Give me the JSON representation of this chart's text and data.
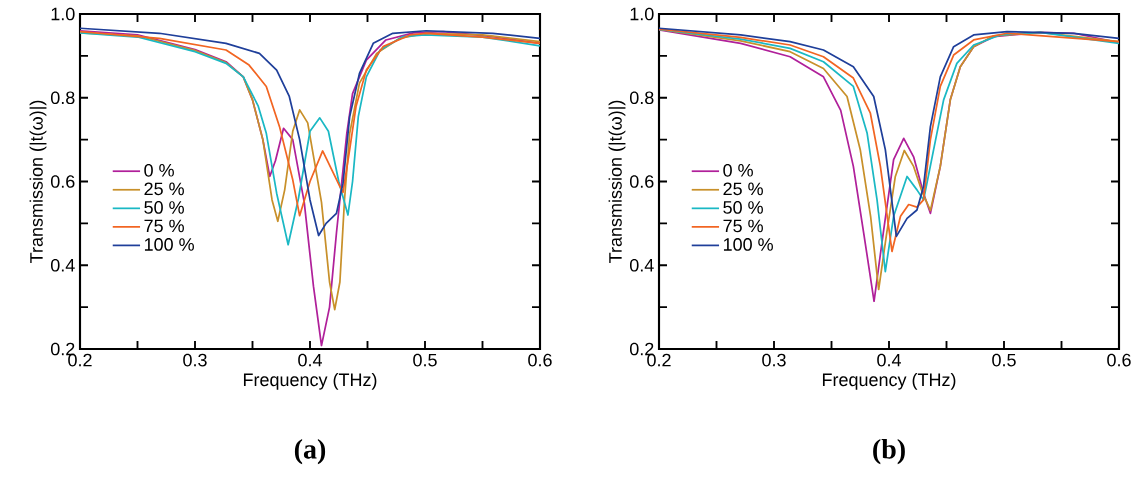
{
  "chart_data": [
    {
      "type": "line",
      "title": "(a)",
      "xlabel": "Frequency (THz)",
      "ylabel": "Transmission (|t(ω)|)",
      "xlim": [
        0.2,
        0.6
      ],
      "ylim": [
        0.2,
        1.0
      ],
      "xticks": [
        0.2,
        {
          "value": 0.25,
          "label": null
        },
        0.3,
        {
          "value": 0.35,
          "label": null
        },
        0.4,
        {
          "value": 0.45,
          "label": null
        },
        0.5,
        {
          "value": 0.55,
          "label": null
        },
        0.6
      ],
      "yticks": [
        0.2,
        {
          "value": 0.3,
          "label": null
        },
        0.4,
        {
          "value": 0.5,
          "label": null
        },
        0.6,
        {
          "value": 0.7,
          "label": null
        },
        0.8,
        {
          "value": 0.9,
          "label": null
        },
        {
          "value": 1.0,
          "label": "1.0"
        }
      ],
      "legend": "left",
      "grid": false,
      "marker": "none",
      "line_style": "solid",
      "series": [
        {
          "name": "0 %",
          "color": "#b0209a",
          "x": [
            0.2,
            0.25,
            0.3,
            0.327,
            0.342,
            0.35,
            0.359,
            0.365,
            0.37,
            0.377,
            0.385,
            0.395,
            0.403,
            0.41,
            0.417,
            0.423,
            0.432,
            0.437,
            0.449,
            0.466,
            0.49,
            0.516,
            0.559,
            0.6
          ],
          "values": [
            0.96,
            0.95,
            0.915,
            0.886,
            0.85,
            0.795,
            0.7,
            0.612,
            0.65,
            0.727,
            0.7,
            0.55,
            0.35,
            0.208,
            0.3,
            0.477,
            0.715,
            0.81,
            0.89,
            0.938,
            0.955,
            0.958,
            0.946,
            0.93
          ]
        },
        {
          "name": "25 %",
          "color": "#c8902a",
          "x": [
            0.2,
            0.25,
            0.3,
            0.327,
            0.342,
            0.35,
            0.359,
            0.367,
            0.372,
            0.378,
            0.385,
            0.391,
            0.398,
            0.41,
            0.417,
            0.4215,
            0.426,
            0.43,
            0.4345,
            0.443,
            0.458,
            0.478,
            0.501,
            0.55,
            0.6
          ],
          "values": [
            0.955,
            0.948,
            0.913,
            0.884,
            0.85,
            0.795,
            0.7,
            0.556,
            0.505,
            0.58,
            0.72,
            0.771,
            0.74,
            0.55,
            0.36,
            0.294,
            0.36,
            0.556,
            0.715,
            0.835,
            0.906,
            0.942,
            0.954,
            0.95,
            0.934
          ]
        },
        {
          "name": "50 %",
          "color": "#1ab8c4",
          "x": [
            0.2,
            0.25,
            0.3,
            0.327,
            0.342,
            0.355,
            0.362,
            0.371,
            0.381,
            0.39,
            0.4,
            0.4085,
            0.416,
            0.425,
            0.433,
            0.437,
            0.442,
            0.449,
            0.461,
            0.481,
            0.5,
            0.55,
            0.6
          ],
          "values": [
            0.955,
            0.945,
            0.91,
            0.882,
            0.85,
            0.78,
            0.715,
            0.572,
            0.449,
            0.56,
            0.72,
            0.752,
            0.72,
            0.6,
            0.52,
            0.6,
            0.755,
            0.85,
            0.914,
            0.946,
            0.95,
            0.945,
            0.924
          ]
        },
        {
          "name": "75 %",
          "color": "#f26522",
          "x": [
            0.2,
            0.269,
            0.327,
            0.347,
            0.362,
            0.3735,
            0.385,
            0.391,
            0.4,
            0.411,
            0.426,
            0.4287,
            0.4345,
            0.44,
            0.449,
            0.4635,
            0.487,
            0.501,
            0.55,
            0.6
          ],
          "values": [
            0.958,
            0.942,
            0.914,
            0.878,
            0.827,
            0.731,
            0.604,
            0.518,
            0.6,
            0.673,
            0.588,
            0.574,
            0.676,
            0.779,
            0.866,
            0.922,
            0.95,
            0.954,
            0.945,
            0.93
          ]
        },
        {
          "name": "100 %",
          "color": "#1f3f9a",
          "x": [
            0.2,
            0.269,
            0.327,
            0.356,
            0.371,
            0.382,
            0.391,
            0.4,
            0.4075,
            0.414,
            0.423,
            0.4287,
            0.4345,
            0.443,
            0.455,
            0.472,
            0.501,
            0.559,
            0.6
          ],
          "values": [
            0.966,
            0.954,
            0.93,
            0.906,
            0.866,
            0.803,
            0.7,
            0.556,
            0.471,
            0.5,
            0.524,
            0.596,
            0.755,
            0.858,
            0.93,
            0.954,
            0.96,
            0.954,
            0.942
          ]
        }
      ]
    },
    {
      "type": "line",
      "title": "(b)",
      "xlabel": "Frequency (THz)",
      "ylabel": "Transmission (|t(ω)|)",
      "xlim": [
        0.2,
        0.6
      ],
      "ylim": [
        0.2,
        1.0
      ],
      "xticks": [
        0.2,
        {
          "value": 0.25,
          "label": null
        },
        0.3,
        {
          "value": 0.35,
          "label": null
        },
        0.4,
        {
          "value": 0.45,
          "label": null
        },
        0.5,
        {
          "value": 0.55,
          "label": null
        },
        0.6
      ],
      "yticks": [
        0.2,
        {
          "value": 0.3,
          "label": null
        },
        0.4,
        {
          "value": 0.5,
          "label": null
        },
        0.6,
        {
          "value": 0.7,
          "label": null
        },
        0.8,
        {
          "value": 0.9,
          "label": null
        },
        {
          "value": 1.0,
          "label": "1.0"
        }
      ],
      "legend": "left",
      "grid": false,
      "marker": "none",
      "line_style": "solid",
      "series": [
        {
          "name": "0 %",
          "color": "#b0209a",
          "x": [
            0.2,
            0.271,
            0.314,
            0.343,
            0.358,
            0.369,
            0.378,
            0.387,
            0.395,
            0.404,
            0.4128,
            0.4214,
            0.43,
            0.436,
            0.4446,
            0.4533,
            0.462,
            0.4736,
            0.491,
            0.5316,
            0.5606,
            0.6
          ],
          "values": [
            0.962,
            0.93,
            0.898,
            0.85,
            0.77,
            0.636,
            0.477,
            0.314,
            0.477,
            0.652,
            0.703,
            0.659,
            0.572,
            0.524,
            0.636,
            0.795,
            0.874,
            0.922,
            0.946,
            0.956,
            0.954,
            0.932
          ]
        },
        {
          "name": "25 %",
          "color": "#c8902a",
          "x": [
            0.2,
            0.271,
            0.314,
            0.343,
            0.3635,
            0.375,
            0.384,
            0.391,
            0.398,
            0.4055,
            0.4133,
            0.4214,
            0.4287,
            0.436,
            0.4446,
            0.4533,
            0.462,
            0.4736,
            0.491,
            0.5316,
            0.6
          ],
          "values": [
            0.963,
            0.936,
            0.91,
            0.87,
            0.803,
            0.676,
            0.517,
            0.342,
            0.477,
            0.612,
            0.674,
            0.636,
            0.576,
            0.531,
            0.636,
            0.795,
            0.874,
            0.922,
            0.948,
            0.956,
            0.934
          ]
        },
        {
          "name": "50 %",
          "color": "#1ab8c4",
          "x": [
            0.2,
            0.271,
            0.314,
            0.343,
            0.369,
            0.381,
            0.3896,
            0.3968,
            0.404,
            0.4157,
            0.4243,
            0.4301,
            0.4388,
            0.4475,
            0.459,
            0.4736,
            0.4968,
            0.5316,
            0.6
          ],
          "values": [
            0.963,
            0.94,
            0.918,
            0.886,
            0.827,
            0.715,
            0.556,
            0.385,
            0.517,
            0.612,
            0.58,
            0.556,
            0.676,
            0.795,
            0.882,
            0.926,
            0.95,
            0.956,
            0.93
          ]
        },
        {
          "name": "75 %",
          "color": "#f26522",
          "x": [
            0.2,
            0.271,
            0.314,
            0.343,
            0.369,
            0.3838,
            0.3925,
            0.4026,
            0.41,
            0.4171,
            0.4243,
            0.43,
            0.436,
            0.4446,
            0.4562,
            0.4736,
            0.5026,
            0.6
          ],
          "values": [
            0.964,
            0.944,
            0.926,
            0.898,
            0.847,
            0.763,
            0.636,
            0.433,
            0.517,
            0.545,
            0.539,
            0.556,
            0.7,
            0.827,
            0.902,
            0.938,
            0.954,
            0.934
          ]
        },
        {
          "name": "100 %",
          "color": "#1f3f9a",
          "x": [
            0.2,
            0.271,
            0.314,
            0.343,
            0.369,
            0.3867,
            0.3968,
            0.4064,
            0.4157,
            0.4243,
            0.43,
            0.436,
            0.4446,
            0.4562,
            0.4736,
            0.5026,
            0.5606,
            0.6
          ],
          "values": [
            0.966,
            0.95,
            0.934,
            0.914,
            0.874,
            0.803,
            0.676,
            0.469,
            0.512,
            0.532,
            0.588,
            0.731,
            0.85,
            0.922,
            0.95,
            0.958,
            0.954,
            0.942
          ]
        }
      ]
    }
  ]
}
